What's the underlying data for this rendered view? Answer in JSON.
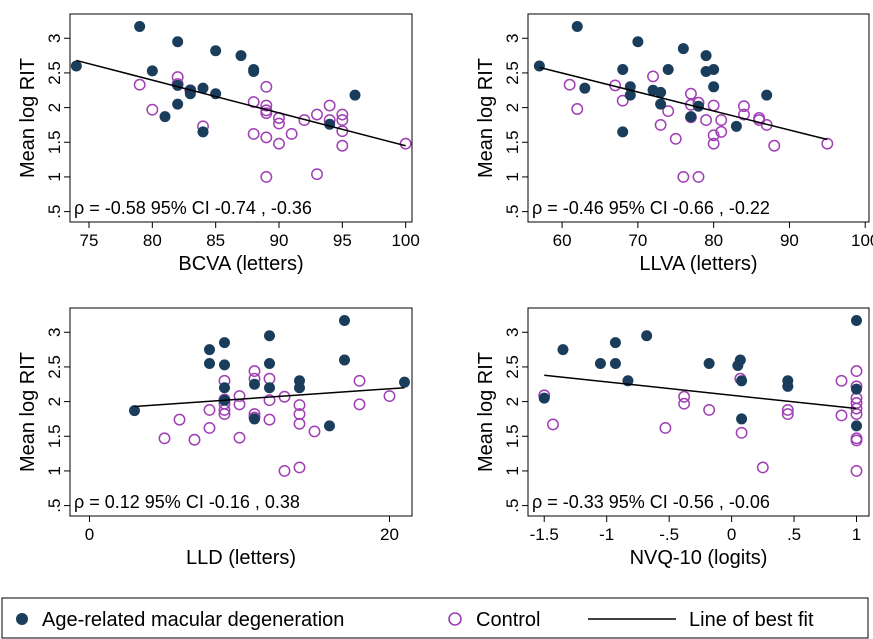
{
  "chart_data": [
    {
      "type": "scatter",
      "xlabel": "BCVA (letters)",
      "ylabel": "Mean log RIT",
      "annotation": "ρ = -0.58  95% CI -0.74 , -0.36",
      "xlim": [
        73.5,
        100.5
      ],
      "ylim": [
        0.35,
        3.35
      ],
      "xticks": [
        75,
        80,
        85,
        90,
        95,
        100
      ],
      "xtick_labels": [
        "75",
        "80",
        "85",
        "90",
        "95",
        "100"
      ],
      "yticks": [
        0.5,
        1,
        1.5,
        2,
        2.5,
        3
      ],
      "ytick_labels": [
        ".5",
        "1",
        "1.5",
        "2",
        "2.5",
        "3"
      ],
      "series": [
        {
          "name": "Age-related macular degeneration",
          "marker": "filled",
          "color": "#1a3d5c",
          "x": [
            74,
            79,
            80,
            81,
            82,
            82,
            82,
            83,
            83,
            84,
            84,
            85,
            85,
            87,
            88,
            88,
            94,
            96
          ],
          "y": [
            2.6,
            3.17,
            2.53,
            1.87,
            2.95,
            2.05,
            2.32,
            2.25,
            2.2,
            2.28,
            1.65,
            2.82,
            2.2,
            2.75,
            2.55,
            2.52,
            1.76,
            2.18
          ]
        },
        {
          "name": "Control",
          "marker": "hollow",
          "color": "#a03fb5",
          "x": [
            79,
            80,
            82,
            82,
            83,
            84,
            88,
            88,
            89,
            89,
            89,
            89,
            89,
            89,
            90,
            90,
            90,
            91,
            92,
            93,
            93,
            94,
            94,
            95,
            95,
            95,
            95,
            100
          ],
          "y": [
            2.33,
            1.97,
            2.44,
            2.34,
            2.25,
            1.73,
            2.08,
            1.62,
            2.3,
            2.03,
            1.96,
            1.92,
            1.57,
            1.0,
            1.85,
            1.77,
            1.48,
            1.62,
            1.82,
            1.9,
            1.04,
            2.03,
            1.82,
            1.9,
            1.82,
            1.66,
            1.45,
            1.48
          ]
        }
      ],
      "fit_line": {
        "name": "Line of best fit",
        "x": [
          74,
          100
        ],
        "y": [
          2.68,
          1.45
        ]
      }
    },
    {
      "type": "scatter",
      "xlabel": "LLVA (letters)",
      "ylabel": "Mean log RIT",
      "annotation": "ρ = -0.46  95% CI -0.66 , -0.22",
      "xlim": [
        55.5,
        100.5
      ],
      "ylim": [
        0.35,
        3.35
      ],
      "xticks": [
        60,
        70,
        80,
        90,
        100
      ],
      "xtick_labels": [
        "60",
        "70",
        "80",
        "90",
        "100"
      ],
      "yticks": [
        0.5,
        1,
        1.5,
        2,
        2.5,
        3
      ],
      "ytick_labels": [
        ".5",
        "1",
        "1.5",
        "2",
        "2.5",
        "3"
      ],
      "series": [
        {
          "name": "Age-related macular degeneration",
          "marker": "filled",
          "color": "#1a3d5c",
          "x": [
            57,
            62,
            63,
            68,
            68,
            69,
            69,
            70,
            72,
            73,
            73,
            74,
            76,
            77,
            78,
            79,
            79,
            80,
            80,
            83,
            87
          ],
          "y": [
            2.6,
            3.17,
            2.28,
            2.55,
            1.65,
            2.3,
            2.18,
            2.95,
            2.25,
            2.22,
            2.05,
            2.55,
            2.85,
            1.87,
            2.02,
            2.75,
            2.52,
            2.55,
            2.3,
            1.73,
            2.18
          ]
        },
        {
          "name": "Control",
          "marker": "hollow",
          "color": "#a03fb5",
          "x": [
            61,
            62,
            67,
            68,
            72,
            73,
            74,
            75,
            76,
            77,
            77,
            77,
            78,
            78,
            79,
            80,
            80,
            80,
            81,
            81,
            84,
            84,
            86,
            86,
            87,
            88,
            95
          ],
          "y": [
            2.33,
            1.98,
            2.32,
            2.1,
            2.45,
            1.75,
            1.95,
            1.55,
            1.0,
            2.2,
            2.04,
            1.86,
            2.07,
            1.0,
            1.82,
            2.03,
            1.6,
            1.48,
            1.82,
            1.65,
            2.02,
            1.9,
            1.82,
            1.85,
            1.75,
            1.45,
            1.48
          ]
        }
      ],
      "fit_line": {
        "name": "Line of best fit",
        "x": [
          57,
          95
        ],
        "y": [
          2.58,
          1.54
        ]
      }
    },
    {
      "type": "scatter",
      "xlabel": "LLD (letters)",
      "ylabel": "Mean log RIT",
      "annotation": "ρ = 0.12  95% CI -0.16 , 0.38",
      "xlim": [
        -1.3,
        21.5
      ],
      "ylim": [
        0.35,
        3.35
      ],
      "xticks": [
        0,
        20
      ],
      "xtick_labels": [
        "0",
        "20"
      ],
      "yticks": [
        0.5,
        1,
        1.5,
        2,
        2.5,
        3
      ],
      "ytick_labels": [
        ".5",
        "1",
        "1.5",
        "2",
        "2.5",
        "3"
      ],
      "series": [
        {
          "name": "Age-related macular degeneration",
          "marker": "filled",
          "color": "#1a3d5c",
          "x": [
            3,
            8,
            8,
            9,
            9,
            9,
            9,
            11,
            11,
            12,
            12,
            12,
            14,
            14,
            16,
            17,
            17,
            21
          ],
          "y": [
            1.87,
            2.75,
            2.55,
            2.85,
            2.53,
            2.2,
            2.02,
            2.25,
            1.75,
            2.95,
            2.55,
            2.2,
            2.3,
            2.2,
            1.65,
            3.17,
            2.6,
            2.28
          ]
        },
        {
          "name": "Control",
          "marker": "hollow",
          "color": "#a03fb5",
          "x": [
            5,
            6,
            7,
            8,
            8,
            9,
            9,
            9,
            9,
            9,
            10,
            10,
            10,
            11,
            11,
            11,
            11,
            12,
            12,
            12,
            13,
            13,
            14,
            14,
            14,
            14,
            15,
            18,
            18,
            20
          ],
          "y": [
            1.47,
            1.74,
            1.45,
            1.62,
            1.88,
            2.3,
            2.03,
            1.97,
            1.88,
            1.82,
            2.08,
            1.96,
            1.48,
            2.44,
            2.33,
            1.82,
            1.77,
            2.33,
            2.02,
            1.74,
            2.07,
            1.0,
            1.95,
            1.82,
            1.68,
            1.05,
            1.57,
            2.3,
            1.96,
            2.08
          ]
        }
      ],
      "fit_line": {
        "name": "Line of best fit",
        "x": [
          3,
          21
        ],
        "y": [
          1.93,
          2.2
        ]
      }
    },
    {
      "type": "scatter",
      "xlabel": "NVQ-10 (logits)",
      "ylabel": "Mean log RIT",
      "annotation": "ρ = -0.33  95% CI -0.56 , -0.06",
      "xlim": [
        -1.63,
        1.1
      ],
      "ylim": [
        0.35,
        3.35
      ],
      "xticks": [
        -1.5,
        -1,
        -0.5,
        0,
        0.5,
        1
      ],
      "xtick_labels": [
        "-1.5",
        "-1",
        "-.5",
        "0",
        ".5",
        "1"
      ],
      "yticks": [
        0.5,
        1,
        1.5,
        2,
        2.5,
        3
      ],
      "ytick_labels": [
        ".5",
        "1",
        "1.5",
        "2",
        "2.5",
        "3"
      ],
      "series": [
        {
          "name": "Age-related macular degeneration",
          "marker": "filled",
          "color": "#1a3d5c",
          "x": [
            -1.5,
            -1.35,
            -1.05,
            -0.93,
            -0.93,
            -0.83,
            -0.68,
            -0.18,
            0.05,
            0.07,
            0.08,
            0.08,
            0.45,
            0.45,
            1.0,
            1.0,
            1.0
          ],
          "y": [
            2.05,
            2.75,
            2.55,
            2.85,
            2.55,
            2.3,
            2.95,
            2.55,
            2.52,
            2.6,
            2.3,
            1.75,
            2.3,
            2.22,
            3.17,
            2.18,
            1.65
          ]
        },
        {
          "name": "Control",
          "marker": "hollow",
          "color": "#a03fb5",
          "x": [
            -1.5,
            -1.43,
            -0.53,
            -0.38,
            -0.38,
            -0.18,
            0.07,
            0.08,
            0.25,
            0.45,
            0.45,
            0.88,
            0.88,
            1.0,
            1.0,
            1.0,
            1.0,
            1.0,
            1.0,
            1.0,
            1.0,
            1.0
          ],
          "y": [
            2.09,
            1.67,
            1.62,
            2.07,
            1.97,
            1.88,
            2.33,
            1.55,
            1.05,
            1.88,
            1.82,
            2.3,
            1.8,
            2.44,
            2.22,
            2.05,
            1.98,
            1.9,
            1.82,
            1.47,
            1.44,
            1.0
          ]
        }
      ],
      "fit_line": {
        "name": "Line of best fit",
        "x": [
          -1.5,
          1.0
        ],
        "y": [
          2.38,
          1.9
        ]
      }
    }
  ],
  "legend": {
    "items": [
      {
        "label": "Age-related macular degeneration",
        "symbol": "filled-circle",
        "color": "#1a3d5c"
      },
      {
        "label": "Control",
        "symbol": "hollow-circle",
        "color": "#a03fb5"
      },
      {
        "label": "Line of best fit",
        "symbol": "line",
        "color": "#000000"
      }
    ]
  }
}
